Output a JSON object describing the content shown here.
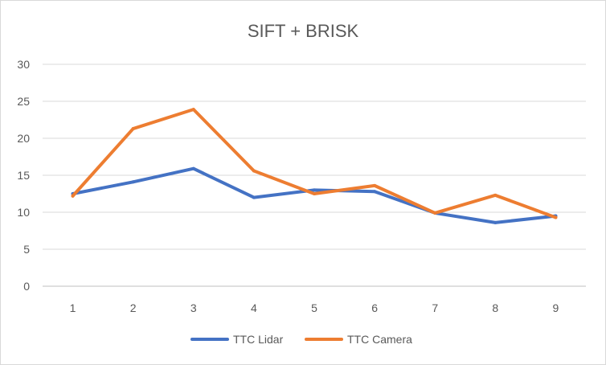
{
  "chart_data": {
    "type": "line",
    "title": "SIFT + BRISK",
    "xlabel": "",
    "ylabel": "",
    "x": [
      1,
      2,
      3,
      4,
      5,
      6,
      7,
      8,
      9
    ],
    "ylim": [
      0,
      30
    ],
    "yticks": [
      0,
      5,
      10,
      15,
      20,
      25,
      30
    ],
    "grid": true,
    "legend": "bottom",
    "series": [
      {
        "name": "TTC Lidar",
        "color": "#4472c4",
        "values": [
          12.5,
          14.1,
          15.9,
          12.0,
          13.0,
          12.8,
          9.9,
          8.6,
          9.5
        ]
      },
      {
        "name": "TTC Camera",
        "color": "#ed7d31",
        "values": [
          12.2,
          21.3,
          23.9,
          15.6,
          12.5,
          13.6,
          9.9,
          12.3,
          9.3
        ]
      }
    ]
  }
}
